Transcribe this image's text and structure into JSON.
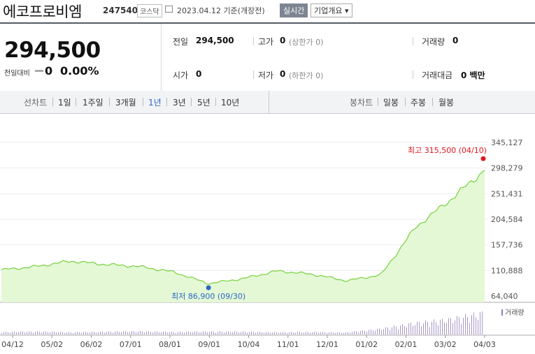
{
  "header": {
    "company": "에코프로비엠",
    "code": "247540",
    "market": "코스닥",
    "date": "2023.04.12",
    "basis": "기준(개장전)",
    "realtime": "실시간",
    "company_info": "기업개요"
  },
  "summary": {
    "price": "294,500",
    "change_label": "전일대비",
    "change_value": "0",
    "change_pct": "0.00%",
    "prev_label": "전일",
    "prev_value": "294,500",
    "high_label": "고가",
    "high_value": "0",
    "high_limit": "(상한가 0)",
    "volume_label": "거래량",
    "volume_value": "0",
    "open_label": "시가",
    "open_value": "0",
    "low_label": "저가",
    "low_value": "0",
    "low_limit": "(하한가 0)",
    "amount_label": "거래대금",
    "amount_value": "0 백만"
  },
  "tabs": {
    "line_label": "선차트",
    "periods": [
      "1일",
      "1주일",
      "3개월",
      "1년",
      "3년",
      "5년",
      "10년"
    ],
    "active_period": "1년",
    "candle_label": "봉차트",
    "candles": [
      "일봉",
      "주봉",
      "월봉"
    ]
  },
  "colors": {
    "accent": "#2d67c4",
    "line": "#77d13c",
    "fill": "#e4f8d6",
    "high": "#e3141c",
    "low": "#2d67c4",
    "volume": "#a896c9"
  },
  "chart_data": {
    "type": "area",
    "y_ticks": [
      "345,127",
      "298,279",
      "251,431",
      "204,584",
      "157,736",
      "110,888",
      "64,040"
    ],
    "ylim": [
      64040,
      345127
    ],
    "x_ticks": [
      "04/12",
      "05/02",
      "06/02",
      "07/01",
      "08/01",
      "09/01",
      "10/04",
      "11/01",
      "12/01",
      "01/02",
      "02/01",
      "03/02",
      "04/03"
    ],
    "x": [
      "04/12",
      "05/02",
      "06/02",
      "07/01",
      "08/01",
      "09/01",
      "09/30",
      "10/04",
      "11/01",
      "12/01",
      "01/02",
      "02/01",
      "03/02",
      "04/03",
      "04/10"
    ],
    "values": [
      112000,
      118000,
      128000,
      122000,
      118000,
      108000,
      86900,
      96000,
      110000,
      104000,
      92000,
      103000,
      190000,
      240000,
      294500
    ],
    "high_annotation": "최고 315,500 (04/10)",
    "low_annotation": "최저 86,900 (09/30)",
    "volume_legend": "거래량",
    "volume_values": [
      0.1,
      0.12,
      0.09,
      0.11,
      0.13,
      0.1,
      0.12,
      0.11,
      0.09,
      0.1,
      0.08,
      0.22,
      0.45,
      0.6,
      0.85
    ]
  }
}
